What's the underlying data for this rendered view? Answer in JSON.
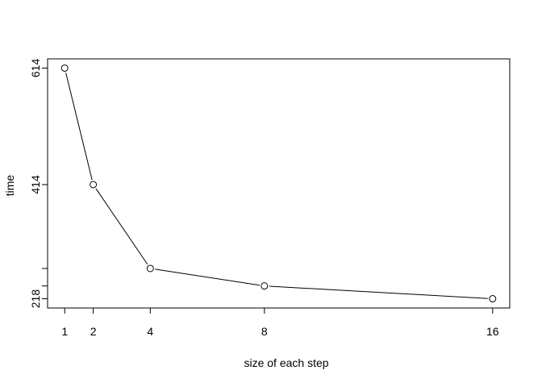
{
  "chart_data": {
    "type": "line",
    "title": "",
    "xlabel": "size of each step",
    "ylabel": "time",
    "x": [
      1,
      2,
      4,
      8,
      16
    ],
    "series": [
      {
        "values": [
          614,
          414,
          270,
          240,
          218
        ],
        "marker": "open-circle",
        "color": "#000000"
      }
    ],
    "x_ticks": [
      1,
      2,
      4,
      8,
      16
    ],
    "x_tick_labels": [
      "1",
      "2",
      "4",
      "8",
      "16"
    ],
    "y_ticks": [
      218,
      240,
      270,
      414,
      614
    ],
    "y_tick_labels": [
      "218",
      "",
      "",
      "414",
      "614"
    ],
    "xlim": [
      0.4,
      16.6
    ],
    "ylim": [
      202.16,
      629.84
    ],
    "grid": false,
    "legend": "none"
  }
}
